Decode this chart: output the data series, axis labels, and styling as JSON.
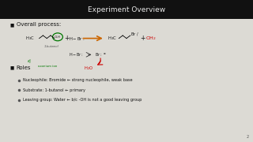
{
  "title": "Experiment Overview",
  "title_bg": "#111111",
  "title_color": "#e8e8e8",
  "bg_color": "#dcdad4",
  "bullet1": "Overall process:",
  "bullet2": "Roles",
  "sub1": "Nucleophile: Bromide ← strong nucleophile, weak base",
  "sub2": "Substrate: 1-butanol ← primary",
  "sub3": "Leaving group: Water ← b/c -OH is not a good leaving group",
  "reaction_color": "#cc6600",
  "red_color": "#cc0000",
  "green_color": "#007700",
  "text_color": "#111111",
  "gray_color": "#555555"
}
